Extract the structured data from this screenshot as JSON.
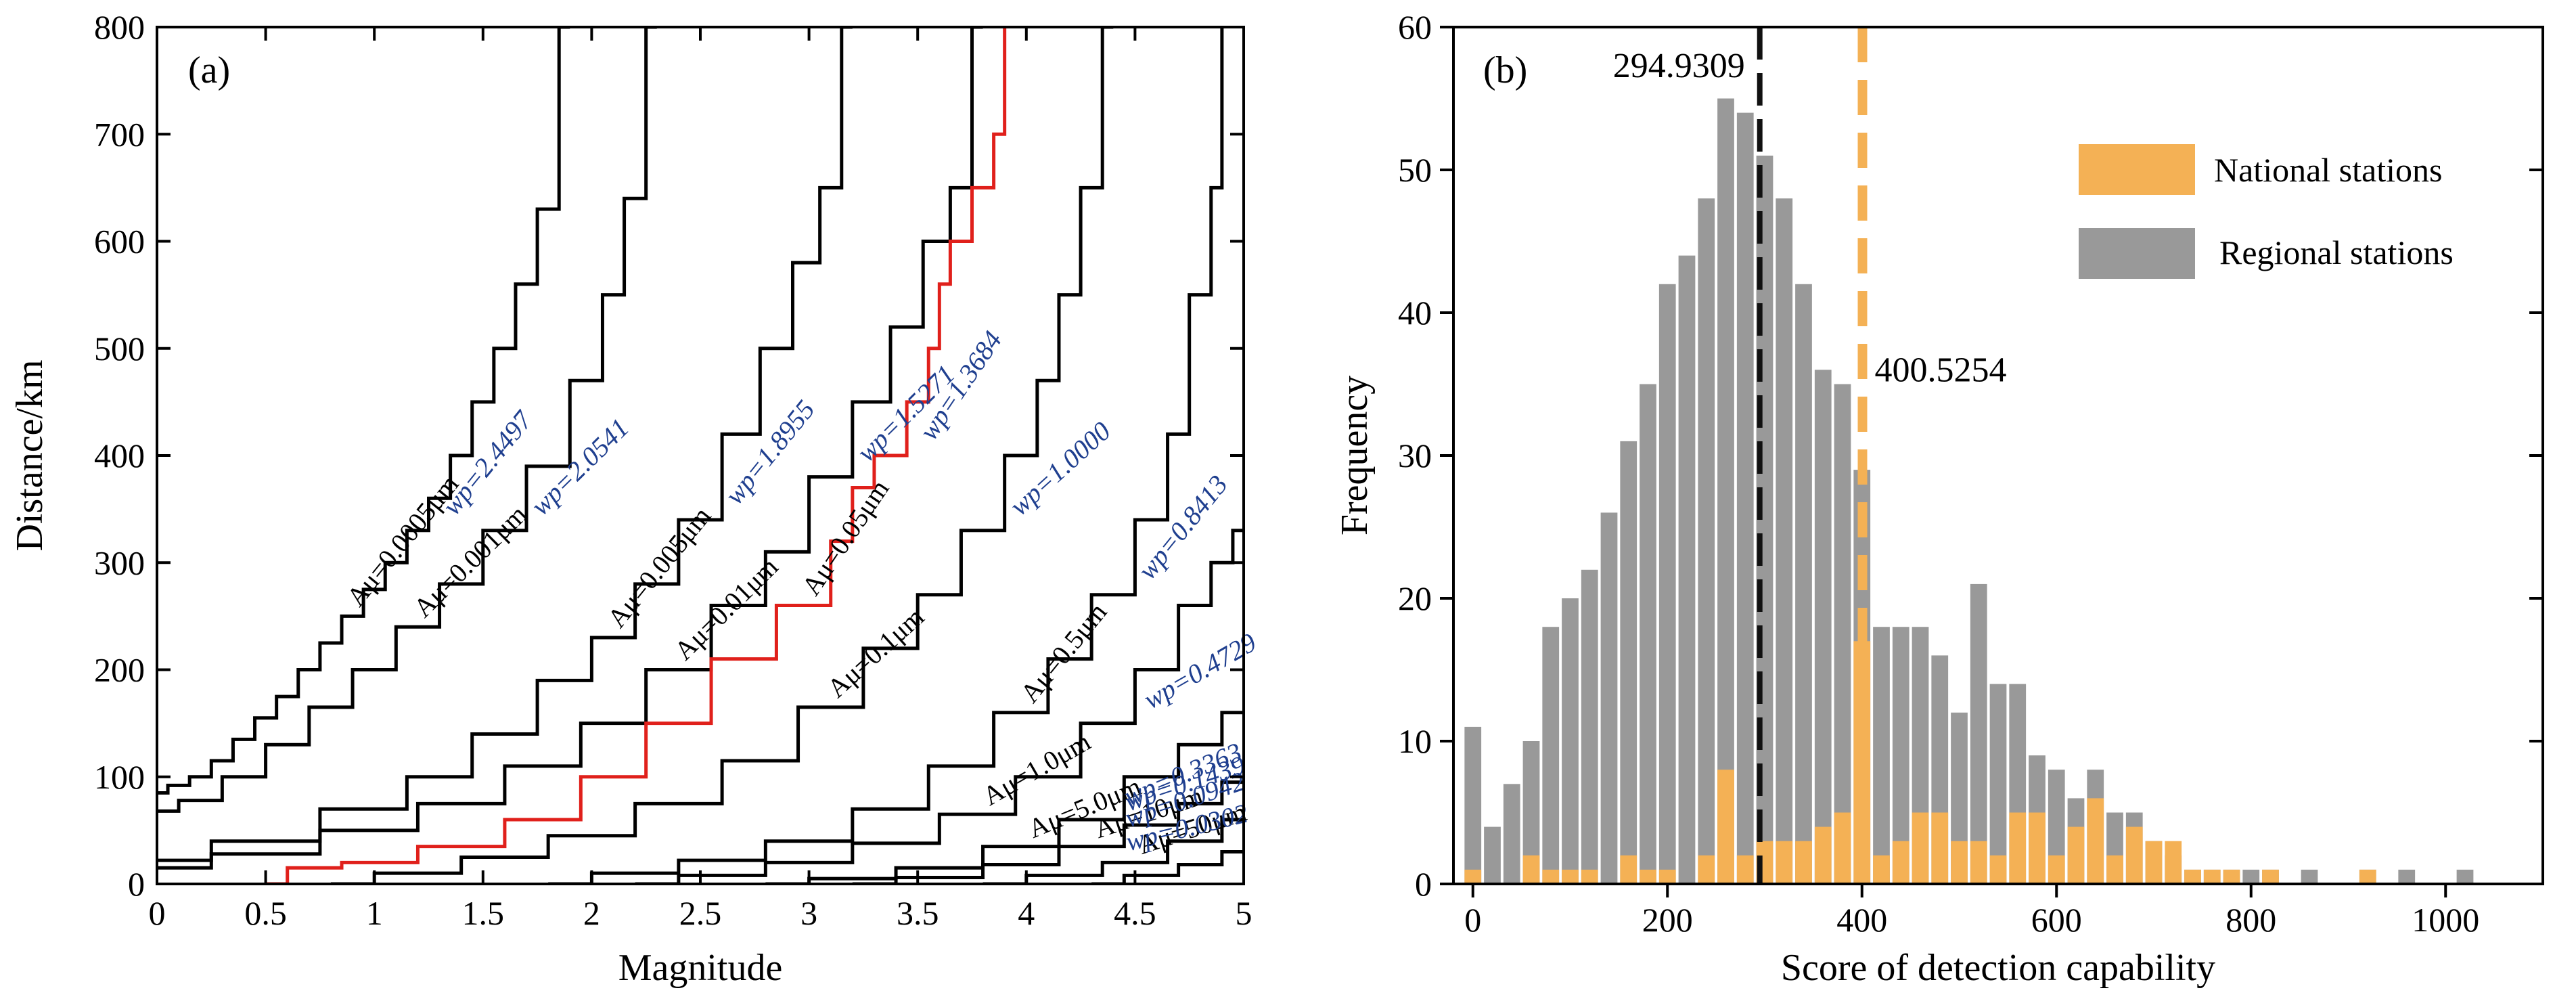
{
  "chart_data": [
    {
      "panel": "(a)",
      "type": "line",
      "xlabel": "Magnitude",
      "ylabel": "Distance/km",
      "xlim": [
        0,
        5
      ],
      "ylim": [
        0,
        800
      ],
      "x_ticks": [
        "0",
        "0.5",
        "1",
        "1.5",
        "2",
        "2.5",
        "3",
        "3.5",
        "4",
        "4.5",
        "5"
      ],
      "y_ticks": [
        "0",
        "100",
        "200",
        "300",
        "400",
        "500",
        "600",
        "700",
        "800"
      ],
      "highlight_color": "#e0201b",
      "label_color": "#1f3f8f",
      "curves": [
        {
          "label": "Aμ=0.0005μm",
          "wp": "wp=2.4497",
          "highlight": false,
          "points": [
            [
              0,
              85
            ],
            [
              0.1,
              92
            ],
            [
              0.2,
              100
            ],
            [
              0.3,
              115
            ],
            [
              0.4,
              135
            ],
            [
              0.5,
              155
            ],
            [
              0.6,
              175
            ],
            [
              0.7,
              200
            ],
            [
              0.8,
              225
            ],
            [
              0.9,
              250
            ],
            [
              1.0,
              275
            ],
            [
              1.1,
              300
            ],
            [
              1.2,
              330
            ],
            [
              1.3,
              360
            ],
            [
              1.4,
              400
            ],
            [
              1.5,
              450
            ],
            [
              1.6,
              500
            ],
            [
              1.7,
              560
            ],
            [
              1.8,
              630
            ],
            [
              1.9,
              800
            ]
          ]
        },
        {
          "label": "Aμ=0.001μm",
          "wp": "wp=2.0541",
          "highlight": false,
          "points": [
            [
              0,
              68
            ],
            [
              0.2,
              78
            ],
            [
              0.4,
              100
            ],
            [
              0.6,
              130
            ],
            [
              0.8,
              165
            ],
            [
              1.0,
              200
            ],
            [
              1.2,
              240
            ],
            [
              1.4,
              280
            ],
            [
              1.6,
              330
            ],
            [
              1.8,
              390
            ],
            [
              2.0,
              470
            ],
            [
              2.1,
              550
            ],
            [
              2.2,
              640
            ],
            [
              2.3,
              800
            ]
          ]
        },
        {
          "label": "Aμ=0.005μm",
          "wp": "wp=1.8955",
          "highlight": false,
          "points": [
            [
              0,
              22
            ],
            [
              0.5,
              40
            ],
            [
              1.0,
              70
            ],
            [
              1.3,
              100
            ],
            [
              1.6,
              140
            ],
            [
              1.9,
              190
            ],
            [
              2.1,
              230
            ],
            [
              2.3,
              280
            ],
            [
              2.5,
              340
            ],
            [
              2.7,
              420
            ],
            [
              2.85,
              500
            ],
            [
              3.0,
              580
            ],
            [
              3.1,
              650
            ],
            [
              3.2,
              800
            ]
          ]
        },
        {
          "label": "Aμ=0.01μm",
          "wp": "wp=1.5271",
          "highlight": false,
          "points": [
            [
              0,
              15
            ],
            [
              0.5,
              28
            ],
            [
              1.0,
              50
            ],
            [
              1.4,
              75
            ],
            [
              1.8,
              110
            ],
            [
              2.1,
              150
            ],
            [
              2.4,
              200
            ],
            [
              2.7,
              260
            ],
            [
              2.9,
              310
            ],
            [
              3.1,
              380
            ],
            [
              3.3,
              450
            ],
            [
              3.45,
              520
            ],
            [
              3.6,
              600
            ],
            [
              3.7,
              650
            ],
            [
              3.8,
              800
            ]
          ]
        },
        {
          "label": "Aμ=0.05μm",
          "wp": "wp=1.3684",
          "highlight": true,
          "points": [
            [
              0.5,
              0
            ],
            [
              0.7,
              15
            ],
            [
              1.0,
              20
            ],
            [
              1.4,
              35
            ],
            [
              1.8,
              60
            ],
            [
              2.1,
              100
            ],
            [
              2.4,
              150
            ],
            [
              2.7,
              210
            ],
            [
              3.0,
              260
            ],
            [
              3.2,
              320
            ],
            [
              3.2,
              370
            ],
            [
              3.4,
              400
            ],
            [
              3.5,
              450
            ],
            [
              3.6,
              500
            ],
            [
              3.6,
              560
            ],
            [
              3.7,
              600
            ],
            [
              3.8,
              650
            ],
            [
              3.9,
              700
            ],
            [
              3.9,
              800
            ]
          ]
        },
        {
          "label": "Aμ=0.1μm",
          "wp": "wp=1.0000",
          "highlight": false,
          "points": [
            [
              0.8,
              0
            ],
            [
              1.2,
              10
            ],
            [
              1.6,
              25
            ],
            [
              2.0,
              45
            ],
            [
              2.4,
              75
            ],
            [
              2.8,
              115
            ],
            [
              3.1,
              165
            ],
            [
              3.4,
              220
            ],
            [
              3.6,
              270
            ],
            [
              3.8,
              330
            ],
            [
              4.0,
              400
            ],
            [
              4.1,
              470
            ],
            [
              4.2,
              550
            ],
            [
              4.3,
              650
            ],
            [
              4.4,
              800
            ]
          ]
        },
        {
          "label": "Aμ=0.5μm",
          "wp": "wp=0.8413",
          "highlight": false,
          "points": [
            [
              1.8,
              0
            ],
            [
              2.2,
              10
            ],
            [
              2.6,
              22
            ],
            [
              3.0,
              40
            ],
            [
              3.4,
              70
            ],
            [
              3.7,
              110
            ],
            [
              4.0,
              160
            ],
            [
              4.2,
              210
            ],
            [
              4.4,
              270
            ],
            [
              4.6,
              340
            ],
            [
              4.7,
              420
            ],
            [
              4.8,
              550
            ],
            [
              4.9,
              650
            ],
            [
              4.9,
              800
            ]
          ]
        },
        {
          "label": "Aμ=1.0μm",
          "wp": "wp=0.4729",
          "highlight": false,
          "points": [
            [
              2.2,
              0
            ],
            [
              2.6,
              8
            ],
            [
              3.0,
              20
            ],
            [
              3.4,
              38
            ],
            [
              3.8,
              65
            ],
            [
              4.1,
              100
            ],
            [
              4.4,
              150
            ],
            [
              4.6,
              200
            ],
            [
              4.8,
              260
            ],
            [
              4.9,
              300
            ],
            [
              5.0,
              330
            ]
          ]
        },
        {
          "label": "Aμ=5.0μm",
          "wp": "wp=0.3363",
          "highlight": false,
          "points": [
            [
              2.8,
              0
            ],
            [
              3.2,
              5
            ],
            [
              3.6,
              15
            ],
            [
              4.0,
              35
            ],
            [
              4.3,
              60
            ],
            [
              4.6,
              100
            ],
            [
              4.8,
              130
            ],
            [
              5.0,
              160
            ]
          ]
        },
        {
          "label": "Aμ=10μm",
          "wp": "wp=0.1439",
          "highlight": false,
          "points": [
            [
              3.2,
              0
            ],
            [
              3.6,
              6
            ],
            [
              4.0,
              18
            ],
            [
              4.3,
              35
            ],
            [
              4.6,
              55
            ],
            [
              4.8,
              75
            ],
            [
              5.0,
              95
            ]
          ]
        },
        {
          "label": "Aμ=50μm",
          "wp": "wp=0.0942",
          "highlight": false,
          "points": [
            [
              3.8,
              0
            ],
            [
              4.2,
              8
            ],
            [
              4.5,
              20
            ],
            [
              4.8,
              40
            ],
            [
              5.0,
              60
            ]
          ]
        },
        {
          "label": "",
          "wp": "wp=0.0302",
          "highlight": false,
          "points": [
            [
              4.3,
              0
            ],
            [
              4.6,
              8
            ],
            [
              4.8,
              18
            ],
            [
              5.0,
              30
            ]
          ]
        }
      ]
    },
    {
      "panel": "(b)",
      "type": "bar",
      "xlabel": "Score of detection capability",
      "ylabel": "Frequency",
      "xlim": [
        -20,
        1100
      ],
      "ylim": [
        0,
        60
      ],
      "x_ticks": [
        "0",
        "200",
        "400",
        "600",
        "800",
        "1000"
      ],
      "y_ticks": [
        "0",
        "10",
        "20",
        "30",
        "40",
        "50",
        "60"
      ],
      "bin_width": 20,
      "bin_starts": [
        -10,
        10,
        30,
        50,
        70,
        90,
        110,
        130,
        150,
        170,
        190,
        210,
        230,
        250,
        270,
        290,
        310,
        330,
        350,
        370,
        390,
        410,
        430,
        450,
        470,
        490,
        510,
        530,
        550,
        570,
        590,
        610,
        630,
        650,
        670,
        690,
        710,
        730,
        750,
        770,
        790,
        810,
        830,
        850,
        870,
        890,
        910,
        930,
        950,
        970,
        990,
        1010
      ],
      "series": [
        {
          "name": "Regional stations",
          "color": "#999999",
          "values": [
            11,
            4,
            7,
            10,
            18,
            20,
            22,
            26,
            31,
            35,
            42,
            44,
            48,
            55,
            54,
            51,
            48,
            42,
            36,
            35,
            29,
            18,
            18,
            18,
            16,
            12,
            21,
            14,
            14,
            9,
            8,
            6,
            8,
            5,
            5,
            3,
            2,
            1,
            1,
            1,
            1,
            1,
            0,
            1,
            0,
            0,
            1,
            0,
            1,
            0,
            0,
            1
          ]
        },
        {
          "name": "National stations",
          "color": "#f4b155",
          "values": [
            1,
            0,
            0,
            2,
            1,
            1,
            1,
            0,
            2,
            1,
            1,
            0,
            2,
            8,
            2,
            3,
            3,
            3,
            4,
            5,
            17,
            2,
            3,
            5,
            5,
            3,
            3,
            2,
            5,
            5,
            2,
            4,
            6,
            2,
            4,
            3,
            3,
            1,
            1,
            1,
            0,
            1,
            0,
            0,
            0,
            0,
            1,
            0,
            0,
            0,
            0,
            0
          ]
        }
      ],
      "reference_lines": [
        {
          "value": 294.9309,
          "label": "294.9309",
          "color": "#111111"
        },
        {
          "value": 400.5254,
          "label": "400.5254",
          "color": "#f4b155"
        }
      ]
    }
  ]
}
